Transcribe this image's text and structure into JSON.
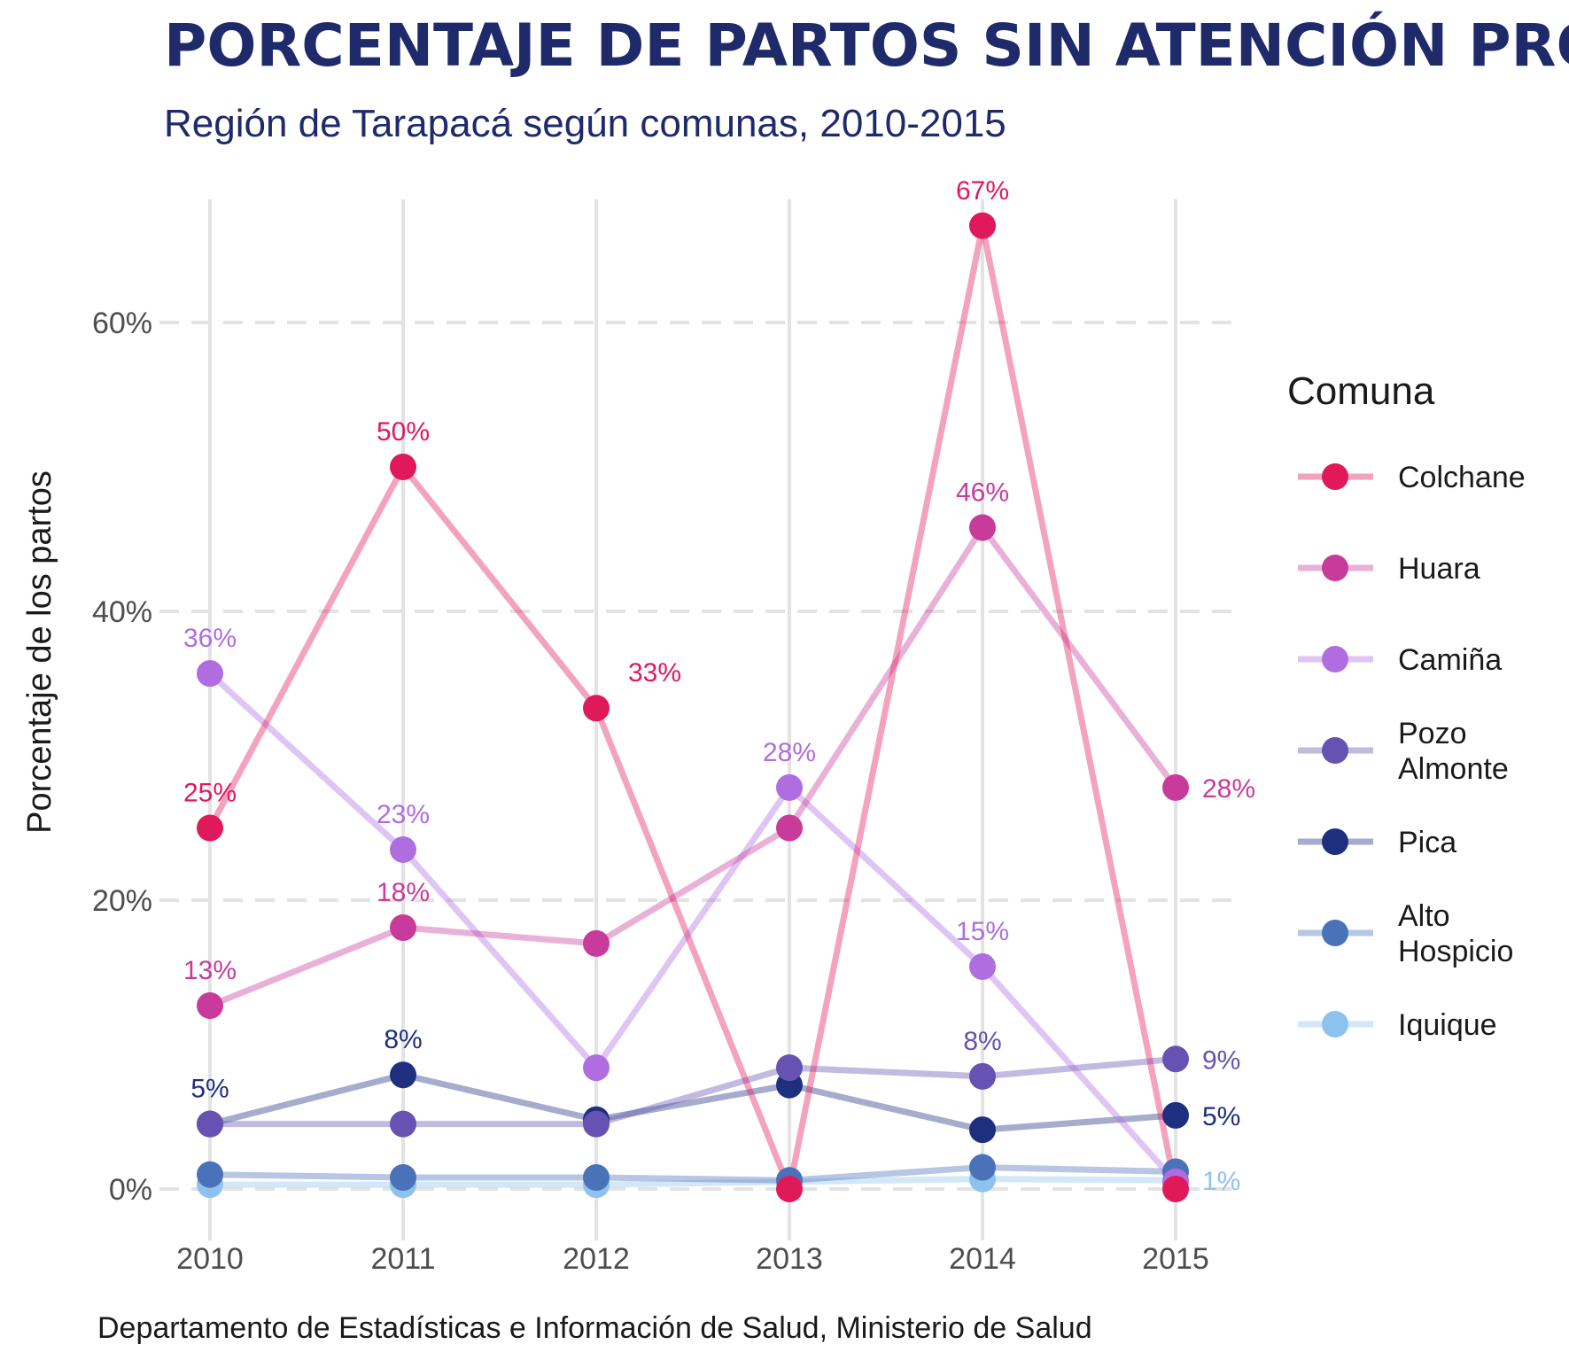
{
  "chart_data": {
    "type": "line",
    "title": "PORCENTAJE DE PARTOS SIN ATENCIÓN PROFESIONAL",
    "subtitle": "Región de Tarapacá según comunas, 2010-2015",
    "xlabel": "",
    "ylabel": "Porcentaje de los partos",
    "caption": "Departamento de Estadísticas e Información de Salud, Ministerio de Salud",
    "x": [
      2010,
      2011,
      2012,
      2013,
      2014,
      2015
    ],
    "x_tick_labels": [
      "2010",
      "2011",
      "2012",
      "2013",
      "2014",
      "2015"
    ],
    "y_ticks": [
      0,
      20,
      40,
      60
    ],
    "y_tick_labels": [
      "0%",
      "20%",
      "40%",
      "60%"
    ],
    "ylim": [
      -3.5,
      69
    ],
    "grid": "on",
    "legend": {
      "title": "Comuna",
      "position": "right"
    },
    "series": [
      {
        "name": "Colchane",
        "color": "#e0195a",
        "values": [
          25,
          50,
          33.3,
          0,
          66.7,
          0
        ],
        "labels": [
          "25%",
          "50%",
          "33%",
          "",
          "67%",
          ""
        ]
      },
      {
        "name": "Huara",
        "color": "#c93b9a",
        "values": [
          12.7,
          18.1,
          17,
          25,
          45.8,
          27.8
        ],
        "labels": [
          "13%",
          "18%",
          "",
          "",
          "46%",
          "28%"
        ]
      },
      {
        "name": "Camiña",
        "color": "#b06de0",
        "values": [
          35.7,
          23.5,
          8.4,
          27.8,
          15.4,
          0.5
        ],
        "labels": [
          "36%",
          "23%",
          "",
          "28%",
          "15%",
          ""
        ]
      },
      {
        "name": "Pozo\nAlmonte",
        "color": "#6652b2",
        "values": [
          4.5,
          4.5,
          4.5,
          8.4,
          7.8,
          9
        ],
        "labels": [
          "",
          "",
          "",
          "",
          "8%",
          "9%"
        ]
      },
      {
        "name": "Pica",
        "color": "#1e2f80",
        "values": [
          4.5,
          7.9,
          4.8,
          7.2,
          4.1,
          5.1
        ],
        "labels": [
          "5%",
          "8%",
          "",
          "",
          "",
          "5%"
        ]
      },
      {
        "name": "Alto\nHospicio",
        "color": "#4a72b8",
        "values": [
          1,
          0.8,
          0.8,
          0.6,
          1.5,
          1.2
        ],
        "labels": [
          "",
          "",
          "",
          "",
          "",
          ""
        ]
      },
      {
        "name": "Iquique",
        "color": "#8ec2ee",
        "values": [
          0.3,
          0.3,
          0.3,
          0.5,
          0.7,
          0.6
        ],
        "labels": [
          "",
          "",
          "",
          "",
          "",
          "1%"
        ]
      }
    ]
  }
}
